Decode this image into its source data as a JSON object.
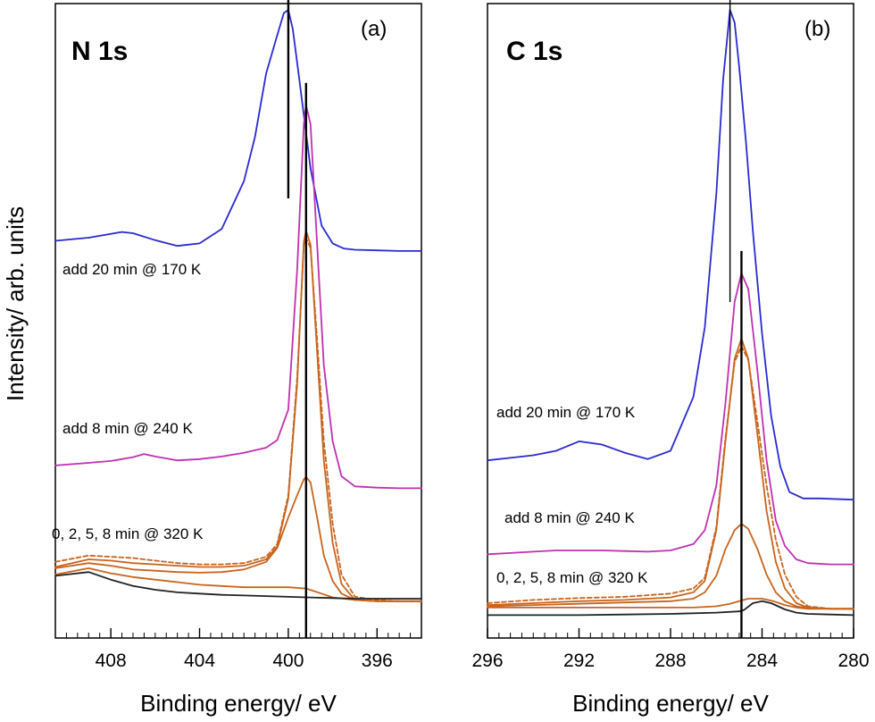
{
  "figure": {
    "ylabel": "Intensity/ arb. units"
  },
  "chart_data": [
    {
      "type": "line",
      "panel_label": "(a)",
      "title": "N 1s",
      "xlabel": "Binding energy/ eV",
      "ylabel": "Intensity/ arb. units",
      "x_reversed": true,
      "xlim": [
        410.5,
        394.0
      ],
      "ylim": [
        0,
        10
      ],
      "x_ticks": [
        408,
        404,
        400,
        396
      ],
      "x_tick_labels": [
        "408",
        "404",
        "400",
        "396"
      ],
      "y_ticks_shown": false,
      "annotations": [
        "add 20 min @ 170 K",
        "add 8 min @ 240 K",
        "0, 2, 5, 8 min @ 320 K"
      ],
      "reference_lines": [
        400.0,
        399.2
      ],
      "series": [
        {
          "color": "#2a2ad0",
          "dashed": false,
          "x": [
            410.5,
            409,
            408,
            407.5,
            407,
            406,
            405,
            404,
            403,
            402,
            401.5,
            401,
            400.5,
            400.2,
            400,
            399.8,
            399.5,
            399,
            398.5,
            398,
            397.5,
            397,
            396,
            395,
            394
          ],
          "y": [
            6.26,
            6.31,
            6.37,
            6.4,
            6.38,
            6.27,
            6.18,
            6.22,
            6.45,
            7.2,
            7.9,
            8.9,
            9.5,
            9.85,
            9.9,
            9.6,
            8.8,
            7.4,
            6.5,
            6.22,
            6.14,
            6.12,
            6.11,
            6.1,
            6.1
          ]
        },
        {
          "color": "#c030b0",
          "dashed": false,
          "x": [
            410.5,
            409,
            408,
            407,
            406.5,
            406,
            405,
            404,
            403,
            402,
            401,
            400.5,
            400,
            399.6,
            399.3,
            399.2,
            399,
            398.7,
            398.4,
            398,
            397.6,
            397,
            396,
            395,
            394
          ],
          "y": [
            2.72,
            2.76,
            2.79,
            2.85,
            2.9,
            2.86,
            2.8,
            2.82,
            2.86,
            2.92,
            3.0,
            3.12,
            3.6,
            5.8,
            8.1,
            8.4,
            8.1,
            6.2,
            4.3,
            3.1,
            2.55,
            2.39,
            2.37,
            2.36,
            2.36
          ]
        },
        {
          "color": "#c8641e",
          "dashed": false,
          "x": [
            410.5,
            409,
            408,
            407,
            406,
            405,
            404,
            403,
            402,
            401,
            400.5,
            400,
            399.6,
            399.3,
            399.2,
            399,
            398.7,
            398.4,
            398,
            397.6,
            397,
            396,
            395,
            394
          ],
          "y": [
            1.12,
            1.24,
            1.22,
            1.18,
            1.16,
            1.14,
            1.12,
            1.12,
            1.14,
            1.24,
            1.44,
            2.2,
            4.0,
            6.25,
            6.42,
            6.2,
            4.5,
            2.8,
            1.5,
            0.85,
            0.6,
            0.58,
            0.58,
            0.58
          ]
        },
        {
          "color": "#c8641e",
          "dashed": true,
          "x": [
            410.5,
            409,
            408,
            407,
            406,
            405,
            404,
            403,
            402,
            401,
            400.5,
            400,
            399.6,
            399.3,
            399.2,
            399,
            398.7,
            398.4,
            398,
            397.6,
            397,
            396,
            395,
            394
          ],
          "y": [
            1.2,
            1.3,
            1.28,
            1.26,
            1.22,
            1.18,
            1.16,
            1.16,
            1.18,
            1.28,
            1.48,
            2.25,
            4.1,
            6.2,
            6.3,
            6.15,
            4.7,
            3.1,
            1.8,
            1.0,
            0.65,
            0.6,
            0.58,
            0.58
          ]
        },
        {
          "color": "#c8641e",
          "dashed": false,
          "x": [
            410.5,
            409,
            408,
            407,
            406,
            405,
            404,
            403,
            402,
            401,
            400.5,
            400,
            399.6,
            399.3,
            399.2,
            399,
            398.7,
            398.4,
            398,
            397.6,
            397,
            396,
            395,
            394
          ],
          "y": [
            1.1,
            1.18,
            1.14,
            1.08,
            1.06,
            1.04,
            1.03,
            1.04,
            1.08,
            1.2,
            1.42,
            1.9,
            2.25,
            2.5,
            2.54,
            2.45,
            1.9,
            1.3,
            0.9,
            0.7,
            0.6,
            0.58,
            0.58,
            0.58
          ]
        },
        {
          "color": "#c8641e",
          "dashed": false,
          "x": [
            410.5,
            409,
            408,
            407,
            406,
            405,
            404,
            403,
            402,
            401,
            400,
            399.2,
            398.5,
            398,
            397,
            396,
            395,
            394
          ],
          "y": [
            1.0,
            1.1,
            1.02,
            0.96,
            0.92,
            0.88,
            0.84,
            0.82,
            0.8,
            0.8,
            0.8,
            0.78,
            0.7,
            0.64,
            0.6,
            0.58,
            0.58,
            0.58
          ]
        },
        {
          "color": "#222222",
          "dashed": false,
          "x": [
            410.5,
            409,
            408,
            407,
            406,
            405,
            404,
            403,
            402,
            401,
            400,
            399,
            398,
            397,
            396,
            395,
            394
          ],
          "y": [
            0.98,
            1.04,
            0.92,
            0.82,
            0.76,
            0.72,
            0.7,
            0.68,
            0.67,
            0.66,
            0.65,
            0.64,
            0.63,
            0.62,
            0.62,
            0.62,
            0.62
          ]
        }
      ]
    },
    {
      "type": "line",
      "panel_label": "(b)",
      "title": "C 1s",
      "xlabel": "Binding energy/ eV",
      "ylabel": "",
      "x_reversed": true,
      "xlim": [
        296.0,
        280.0
      ],
      "ylim": [
        0,
        10
      ],
      "x_ticks": [
        296,
        292,
        288,
        284,
        280
      ],
      "x_tick_labels": [
        "296",
        "292",
        "288",
        "284",
        "280"
      ],
      "y_ticks_shown": false,
      "annotations": [
        "add 20 min @ 170 K",
        "add 8 min @ 240 K",
        "0, 2, 5, 8 min @ 320 K"
      ],
      "reference_lines": [
        285.4,
        284.9
      ],
      "series": [
        {
          "color": "#2a2ad0",
          "dashed": false,
          "x": [
            296,
            295,
            294,
            293,
            292,
            291,
            290,
            289,
            288,
            287,
            286.5,
            286,
            285.7,
            285.4,
            285.2,
            285,
            284.7,
            284.4,
            284,
            283.6,
            283.2,
            282.8,
            282.2,
            281.5,
            280
          ],
          "y": [
            2.8,
            2.84,
            2.88,
            2.95,
            3.1,
            3.05,
            2.92,
            2.82,
            2.95,
            3.8,
            4.9,
            7.0,
            8.8,
            9.9,
            9.7,
            9.0,
            7.8,
            6.4,
            4.8,
            3.5,
            2.7,
            2.3,
            2.2,
            2.2,
            2.18
          ]
        },
        {
          "color": "#c030b0",
          "dashed": false,
          "x": [
            296,
            295,
            294,
            293,
            292,
            291,
            290,
            289,
            288,
            287,
            286.5,
            286,
            285.6,
            285.2,
            284.9,
            284.6,
            284.2,
            283.8,
            283.4,
            283,
            282.5,
            282,
            281,
            280
          ],
          "y": [
            1.32,
            1.34,
            1.36,
            1.38,
            1.38,
            1.38,
            1.37,
            1.36,
            1.38,
            1.48,
            1.7,
            2.4,
            3.7,
            5.3,
            5.75,
            5.5,
            4.2,
            2.8,
            1.85,
            1.45,
            1.24,
            1.18,
            1.16,
            1.16
          ]
        },
        {
          "color": "#c8641e",
          "dashed": false,
          "x": [
            296,
            294,
            292,
            290,
            288,
            287,
            286.5,
            286,
            285.6,
            285.2,
            284.9,
            284.6,
            284.2,
            283.8,
            283.4,
            283,
            282.5,
            282,
            281,
            280
          ],
          "y": [
            0.52,
            0.55,
            0.58,
            0.6,
            0.64,
            0.72,
            0.9,
            1.7,
            3.1,
            4.4,
            4.72,
            4.4,
            3.2,
            2.0,
            1.2,
            0.78,
            0.55,
            0.48,
            0.46,
            0.46
          ]
        },
        {
          "color": "#c8641e",
          "dashed": true,
          "x": [
            296,
            294,
            292,
            290,
            288,
            287,
            286.5,
            286,
            285.6,
            285.2,
            284.9,
            284.6,
            284.2,
            283.8,
            283.4,
            283,
            282.5,
            282,
            281,
            280
          ],
          "y": [
            0.55,
            0.6,
            0.63,
            0.65,
            0.7,
            0.78,
            0.95,
            1.75,
            3.15,
            4.35,
            4.6,
            4.38,
            3.4,
            2.4,
            1.55,
            1.0,
            0.65,
            0.5,
            0.46,
            0.46
          ]
        },
        {
          "color": "#c8641e",
          "dashed": false,
          "x": [
            296,
            294,
            292,
            290,
            288,
            287,
            286.5,
            286,
            285.6,
            285.2,
            284.9,
            284.6,
            284.2,
            283.8,
            283.4,
            283,
            282.5,
            282,
            281,
            280
          ],
          "y": [
            0.5,
            0.52,
            0.54,
            0.56,
            0.58,
            0.62,
            0.72,
            0.98,
            1.4,
            1.7,
            1.8,
            1.72,
            1.4,
            1.0,
            0.72,
            0.58,
            0.5,
            0.47,
            0.46,
            0.46
          ]
        },
        {
          "color": "#c8641e",
          "dashed": false,
          "x": [
            296,
            294,
            292,
            290,
            288,
            287,
            286,
            285.4,
            285,
            284.6,
            284,
            283.5,
            283,
            282.5,
            282,
            281,
            280
          ],
          "y": [
            0.48,
            0.48,
            0.48,
            0.48,
            0.48,
            0.48,
            0.5,
            0.54,
            0.58,
            0.62,
            0.62,
            0.58,
            0.52,
            0.48,
            0.46,
            0.46,
            0.46
          ]
        },
        {
          "color": "#222222",
          "dashed": false,
          "x": [
            296,
            294,
            292,
            290,
            288,
            286,
            285,
            284.8,
            284.4,
            284,
            283.6,
            283,
            282.5,
            282,
            281,
            280
          ],
          "y": [
            0.36,
            0.36,
            0.36,
            0.37,
            0.38,
            0.4,
            0.42,
            0.44,
            0.55,
            0.58,
            0.55,
            0.45,
            0.4,
            0.38,
            0.37,
            0.36
          ]
        }
      ]
    }
  ]
}
